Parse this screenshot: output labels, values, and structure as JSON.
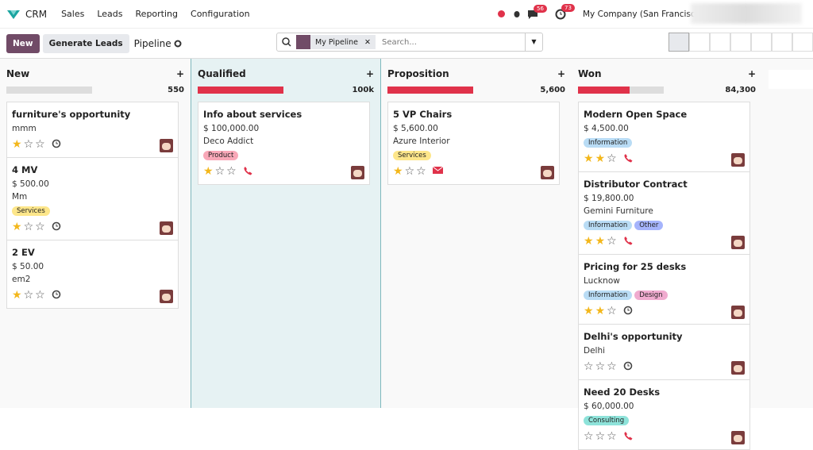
{
  "nav": {
    "app": "CRM",
    "menu": [
      "Sales",
      "Leads",
      "Reporting",
      "Configuration"
    ],
    "messages_badge": "56",
    "activities_badge": "73",
    "company": "My Company (San Francisco)"
  },
  "toolbar": {
    "new": "New",
    "generate": "Generate Leads",
    "breadcrumb": "Pipeline",
    "filter": "My Pipeline",
    "search_placeholder": "Search..."
  },
  "columns": [
    {
      "title": "New",
      "total": "550",
      "cards": [
        {
          "name": "furniture's opportunity",
          "lines": [
            "mmm"
          ],
          "tags": []
        },
        {
          "name": "4 MV",
          "lines": [
            "$ 500.00",
            "Mm"
          ],
          "tags": [
            "Services"
          ]
        },
        {
          "name": "2 EV",
          "lines": [
            "$ 50.00",
            "em2"
          ],
          "tags": []
        }
      ]
    },
    {
      "title": "Qualified",
      "total": "100k",
      "cards": [
        {
          "name": "Info about services",
          "lines": [
            "$ 100,000.00",
            "Deco Addict"
          ],
          "tags": [
            "Product"
          ]
        }
      ]
    },
    {
      "title": "Proposition",
      "total": "5,600",
      "cards": [
        {
          "name": "5 VP Chairs",
          "lines": [
            "$ 5,600.00",
            "Azure Interior"
          ],
          "tags": [
            "Services"
          ]
        }
      ]
    },
    {
      "title": "Won",
      "total": "84,300",
      "cards": [
        {
          "name": "Modern Open Space",
          "lines": [
            "$ 4,500.00"
          ],
          "tags": [
            "Information"
          ]
        },
        {
          "name": "Distributor Contract",
          "lines": [
            "$ 19,800.00",
            "Gemini Furniture"
          ],
          "tags": [
            "Information",
            "Other"
          ]
        },
        {
          "name": "Pricing for 25 desks",
          "lines": [
            "Lucknow"
          ],
          "tags": [
            "Information",
            "Design"
          ]
        },
        {
          "name": "Delhi's opportunity",
          "lines": [
            "Delhi"
          ],
          "tags": []
        },
        {
          "name": "Need 20 Desks",
          "lines": [
            "$ 60,000.00"
          ],
          "tags": [
            "Consulting"
          ]
        }
      ]
    }
  ]
}
